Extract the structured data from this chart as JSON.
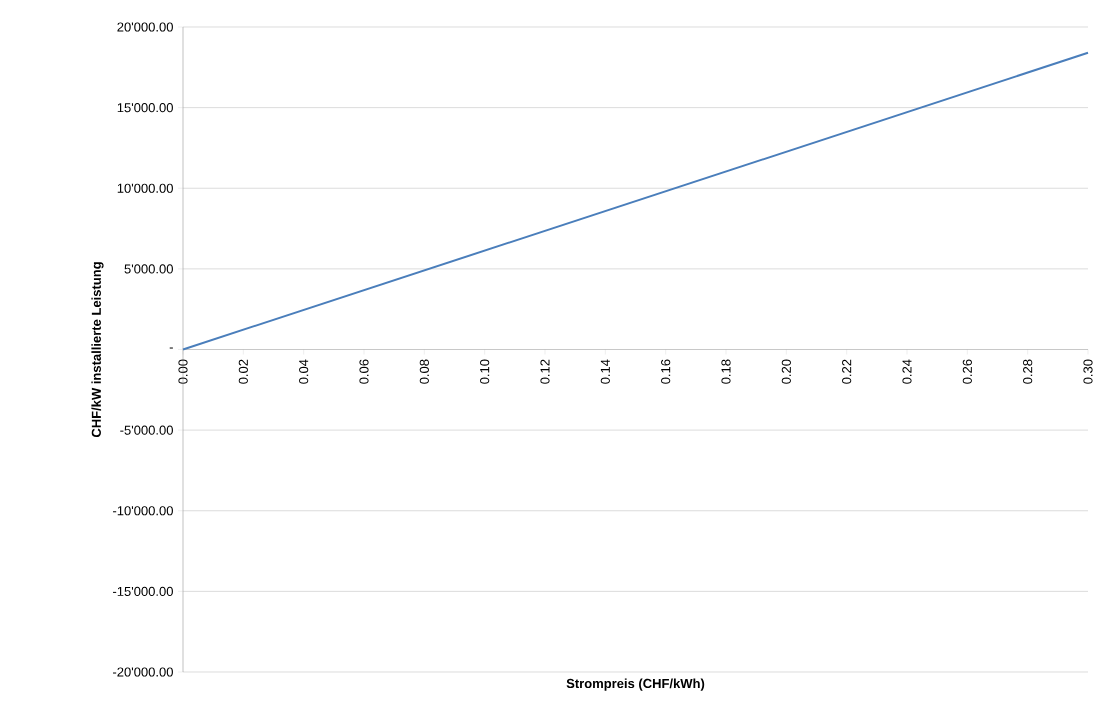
{
  "chart_data": {
    "type": "line",
    "xlabel": "Strompreis (CHF/kWh)",
    "ylabel": "CHF/kW installierte Leistung",
    "x": [
      0,
      0.3
    ],
    "series": [
      {
        "color": "#4a7ebb",
        "values": [
          0,
          18400
        ]
      }
    ],
    "xlim": [
      0,
      0.3
    ],
    "ylim": [
      -20000,
      20000
    ],
    "xticks": [
      {
        "value": 0,
        "label": "0.00"
      },
      {
        "value": 0.02,
        "label": "0.02"
      },
      {
        "value": 0.04,
        "label": "0.04"
      },
      {
        "value": 0.06,
        "label": "0.06"
      },
      {
        "value": 0.08,
        "label": "0.08"
      },
      {
        "value": 0.1,
        "label": "0.10"
      },
      {
        "value": 0.12,
        "label": "0.12"
      },
      {
        "value": 0.14,
        "label": "0.14"
      },
      {
        "value": 0.16,
        "label": "0.16"
      },
      {
        "value": 0.18,
        "label": "0.18"
      },
      {
        "value": 0.2,
        "label": "0.20"
      },
      {
        "value": 0.22,
        "label": "0.22"
      },
      {
        "value": 0.24,
        "label": "0.24"
      },
      {
        "value": 0.26,
        "label": "0.26"
      },
      {
        "value": 0.28,
        "label": "0.28"
      },
      {
        "value": 0.3,
        "label": "0.30"
      }
    ],
    "yticks": [
      {
        "value": -20000,
        "label": "-20'000.00"
      },
      {
        "value": -15000,
        "label": "-15'000.00"
      },
      {
        "value": -10000,
        "label": "-10'000.00"
      },
      {
        "value": -5000,
        "label": "-5'000.00"
      },
      {
        "value": 0,
        "label": "-"
      },
      {
        "value": 5000,
        "label": "5'000.00"
      },
      {
        "value": 10000,
        "label": "10'000.00"
      },
      {
        "value": 15000,
        "label": "15'000.00"
      },
      {
        "value": 20000,
        "label": "20'000.00"
      }
    ],
    "grid": "y",
    "marker": "none",
    "line_style": "solid"
  }
}
